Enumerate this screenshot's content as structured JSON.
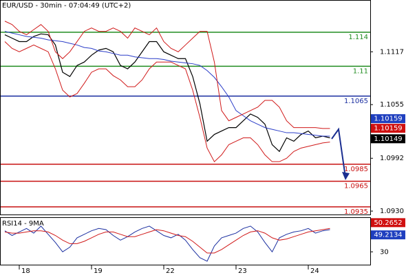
{
  "chart_data": [
    {
      "type": "line",
      "title": "EUR/USD - 30min - 07:04:49 (UTC+2)",
      "categories": [
        null,
        null,
        "18",
        null,
        null,
        null,
        null,
        null,
        null,
        null,
        null,
        null,
        "19",
        null,
        null,
        null,
        null,
        null,
        null,
        null,
        null,
        null,
        "22",
        null,
        null,
        null,
        null,
        null,
        null,
        null,
        null,
        null,
        "23",
        null,
        null,
        null,
        null,
        null,
        null,
        null,
        null,
        null,
        "24",
        null,
        null,
        null
      ],
      "ylim": [
        1.0926,
        1.1177
      ],
      "yticks": [
        1.1117,
        1.1055,
        1.0992,
        {
          "value": 1.093,
          "label": "1.0930"
        }
      ],
      "series": [
        {
          "color": "#000000",
          "width": 1.2,
          "values": [
            1.1137,
            1.1133,
            1.1129,
            1.1129,
            1.1135,
            1.1138,
            1.1137,
            1.1125,
            1.1093,
            1.1088,
            1.1101,
            1.1105,
            1.1113,
            1.1119,
            1.1121,
            1.1117,
            1.1101,
            1.1097,
            1.1105,
            1.1117,
            1.1129,
            1.1129,
            1.1117,
            1.1113,
            1.1109,
            1.1109,
            1.1088,
            1.1056,
            1.1012,
            1.102,
            1.1024,
            1.1028,
            1.1028,
            1.1036,
            1.1044,
            1.104,
            1.1032,
            1.1008,
            1.1,
            1.1016,
            1.1012,
            1.102,
            1.1024,
            1.1016,
            1.1018,
            1.1016
          ]
        },
        {
          "color": "#2a3cc8",
          "width": 1,
          "values": [
            1.1141,
            1.1139,
            1.1137,
            1.1135,
            1.1134,
            1.1133,
            1.1131,
            1.113,
            1.1129,
            1.1127,
            1.1125,
            1.1122,
            1.1121,
            1.1118,
            1.1117,
            1.1115,
            1.1113,
            1.1113,
            1.1111,
            1.111,
            1.1109,
            1.1109,
            1.1108,
            1.1106,
            1.1105,
            1.1104,
            1.1103,
            1.1101,
            1.1095,
            1.1087,
            1.1076,
            1.1064,
            1.1048,
            1.1042,
            1.1036,
            1.1032,
            1.1028,
            1.1026,
            1.1024,
            1.1022,
            1.1022,
            1.1021,
            1.102,
            1.1019,
            1.1018,
            1.1018
          ]
        },
        {
          "color": "#d01818",
          "width": 1,
          "values": [
            1.1153,
            1.1149,
            1.1141,
            1.1137,
            1.1143,
            1.1149,
            1.1141,
            1.1117,
            1.1109,
            1.1117,
            1.1129,
            1.1141,
            1.1145,
            1.1141,
            1.1141,
            1.1145,
            1.1141,
            1.1133,
            1.1145,
            1.1141,
            1.1137,
            1.1145,
            1.1129,
            1.1121,
            1.1117,
            1.1125,
            1.1133,
            1.1141,
            1.1141,
            1.1105,
            1.1048,
            1.1036,
            1.104,
            1.1044,
            1.1048,
            1.1052,
            1.106,
            1.106,
            1.1052,
            1.1036,
            1.1028,
            1.1028,
            1.1028,
            1.1028,
            1.1027,
            1.1027
          ]
        },
        {
          "color": "#d01818",
          "width": 1,
          "values": [
            1.1129,
            1.1121,
            1.1117,
            1.1121,
            1.1125,
            1.1121,
            1.1117,
            1.1097,
            1.1072,
            1.1064,
            1.1068,
            1.108,
            1.1093,
            1.1097,
            1.1097,
            1.1089,
            1.1084,
            1.1076,
            1.1076,
            1.1084,
            1.1097,
            1.1105,
            1.1105,
            1.1105,
            1.1101,
            1.1097,
            1.1072,
            1.104,
            1.1004,
            1.0988,
            1.0996,
            1.1008,
            1.1012,
            1.1016,
            1.1016,
            1.1008,
            1.0996,
            1.0988,
            1.0988,
            1.0992,
            1.1,
            1.1004,
            1.1006,
            1.1008,
            1.101,
            1.1011
          ]
        }
      ],
      "levels": [
        {
          "value": 1.114,
          "color": "#1f8c1f"
        },
        {
          "value": 1.11,
          "color": "#1f8c1f"
        },
        {
          "value": 1.1065,
          "color": "#1a2ea0"
        },
        {
          "value": 1.0985,
          "color": "#c81010"
        },
        {
          "value": 1.0965,
          "color": "#c81010"
        },
        {
          "value": 1.0935,
          "color": "#c81010"
        }
      ],
      "price_tags": [
        {
          "value": 1.10159,
          "color": "#1f3fbf"
        },
        {
          "value": 1.10159,
          "color": "#d01010"
        },
        {
          "value": 1.10149,
          "color": "#000000"
        }
      ]
    },
    {
      "type": "line",
      "title": "RSI14 - 9MA",
      "ylim": [
        19,
        59
      ],
      "yticks": [
        30
      ],
      "series": [
        {
          "color": "#1a2ea0",
          "width": 1,
          "values": [
            48,
            44,
            47,
            50,
            46,
            52,
            45,
            38,
            30,
            34,
            42,
            45,
            48,
            50,
            49,
            44,
            40,
            43,
            47,
            50,
            52,
            48,
            44,
            42,
            45,
            40,
            32,
            25,
            22,
            35,
            42,
            44,
            46,
            50,
            52,
            47,
            38,
            30,
            42,
            45,
            47,
            48,
            50,
            46,
            48,
            49
          ]
        },
        {
          "color": "#d01818",
          "width": 1,
          "values": [
            47,
            46,
            46,
            47,
            48,
            48,
            47,
            44,
            40,
            37,
            37,
            39,
            42,
            45,
            47,
            47,
            45,
            43,
            43,
            45,
            47,
            49,
            48,
            46,
            44,
            43,
            39,
            34,
            29,
            29,
            32,
            36,
            40,
            44,
            47,
            48,
            46,
            42,
            40,
            41,
            43,
            45,
            47,
            48,
            49,
            50
          ]
        }
      ],
      "price_tags": [
        {
          "value": 50.2652,
          "color": "#d01010"
        },
        {
          "value": 49.2134,
          "color": "#1f3fbf"
        }
      ]
    }
  ]
}
